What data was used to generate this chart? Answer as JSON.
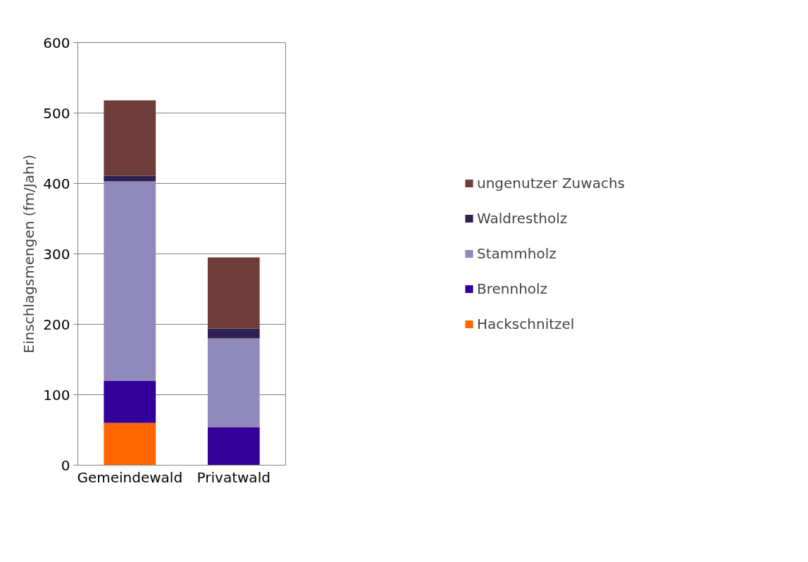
{
  "chart_data": {
    "type": "bar",
    "stacked": true,
    "ylabel": "Einschlagsmengen (fm/Jahr)",
    "categories": [
      "Gemeindewald",
      "Privatwald"
    ],
    "series": [
      {
        "name": "Hackschnitzel",
        "color": "#ff6600",
        "values": [
          60,
          0
        ]
      },
      {
        "name": "Brennholz",
        "color": "#330099",
        "values": [
          60,
          54
        ]
      },
      {
        "name": "Stammholz",
        "color": "#9089bb",
        "values": [
          283,
          126
        ]
      },
      {
        "name": "Waldrestholz",
        "color": "#2e2050",
        "values": [
          8,
          14
        ]
      },
      {
        "name": "ungenutzer Zuwachs",
        "color": "#6e3d3a",
        "values": [
          107,
          101
        ]
      }
    ],
    "ylim": [
      0,
      600
    ],
    "yticks": [
      0,
      100,
      200,
      300,
      400,
      500,
      600
    ],
    "grid": "y",
    "legend": "right"
  }
}
